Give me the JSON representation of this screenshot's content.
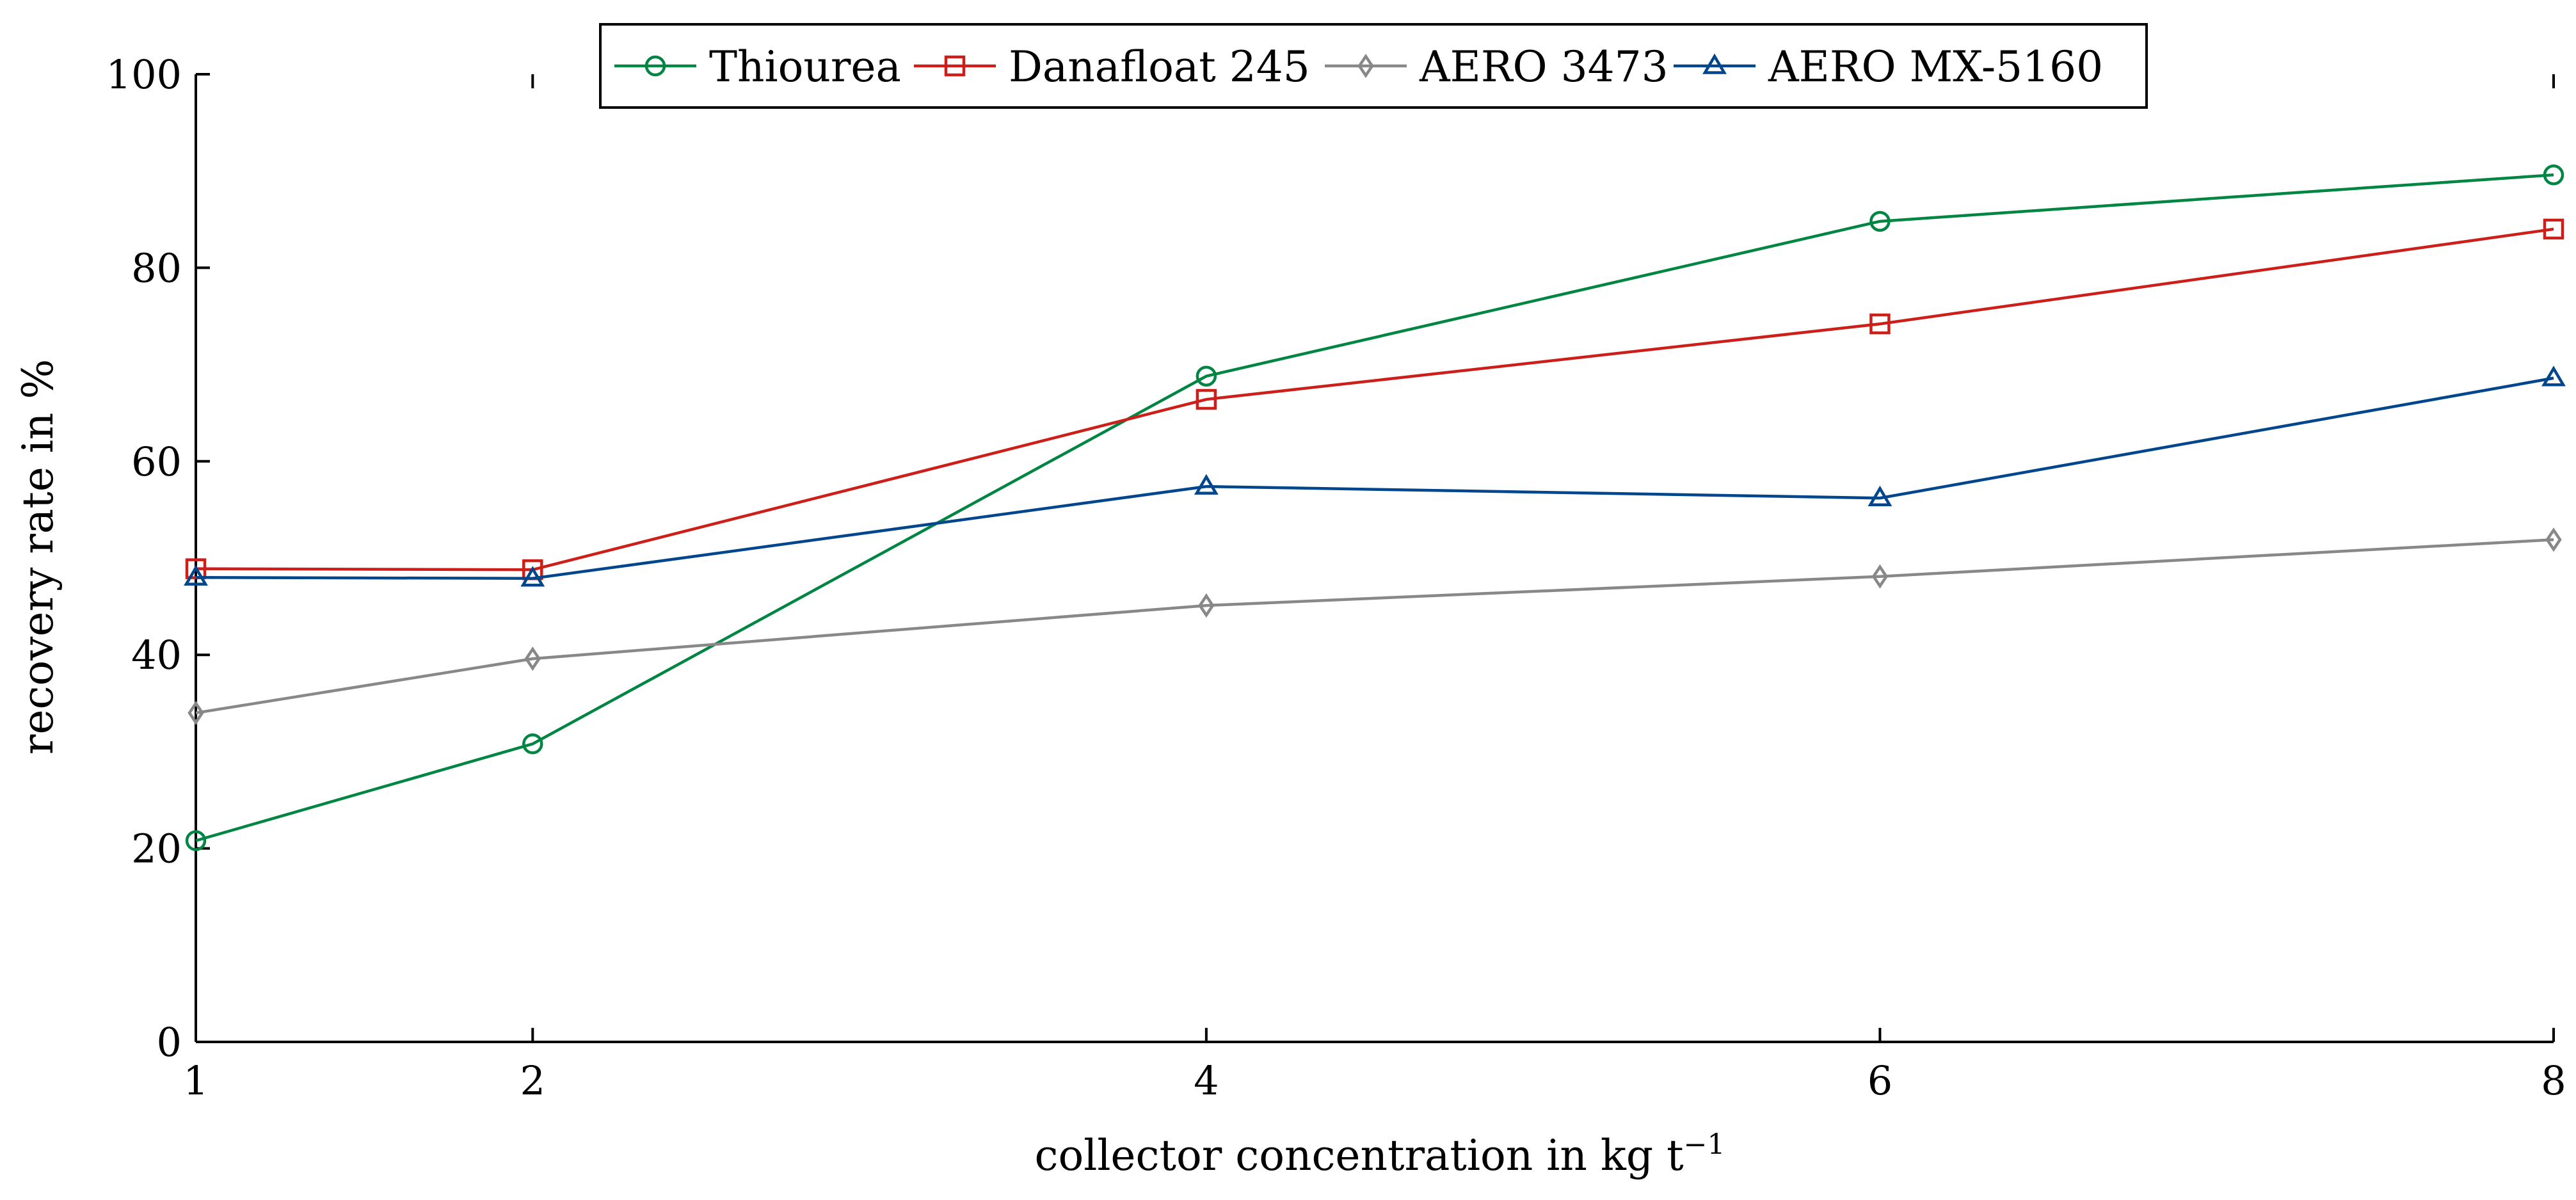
{
  "chart_data": {
    "type": "line",
    "title": "",
    "xlabel": "collector concentration in kg t",
    "xlabel_superscript": "−1",
    "ylabel": "recovery rate in %",
    "x": [
      1,
      2,
      4,
      6,
      8
    ],
    "xlim": [
      1,
      8
    ],
    "ylim": [
      0,
      100
    ],
    "xticks": [
      1,
      2,
      4,
      6,
      8
    ],
    "yticks": [
      0,
      20,
      40,
      60,
      80,
      100
    ],
    "grid": false,
    "legend_position": "top-center",
    "series": [
      {
        "name": "Thiourea",
        "color": "#008542",
        "marker": "circle",
        "values": [
          20.8,
          30.8,
          68.8,
          84.8,
          89.6
        ]
      },
      {
        "name": "Danafloat 245",
        "color": "#cc1f1a",
        "marker": "square",
        "values": [
          48.9,
          48.8,
          66.4,
          74.2,
          84.0
        ]
      },
      {
        "name": "AERO 3473",
        "color": "#888888",
        "marker": "diamond",
        "values": [
          34.0,
          39.6,
          45.1,
          48.1,
          51.9
        ]
      },
      {
        "name": "AERO MX-5160",
        "color": "#00468c",
        "marker": "triangle",
        "values": [
          48.0,
          47.9,
          57.4,
          56.2,
          68.6
        ]
      }
    ]
  }
}
